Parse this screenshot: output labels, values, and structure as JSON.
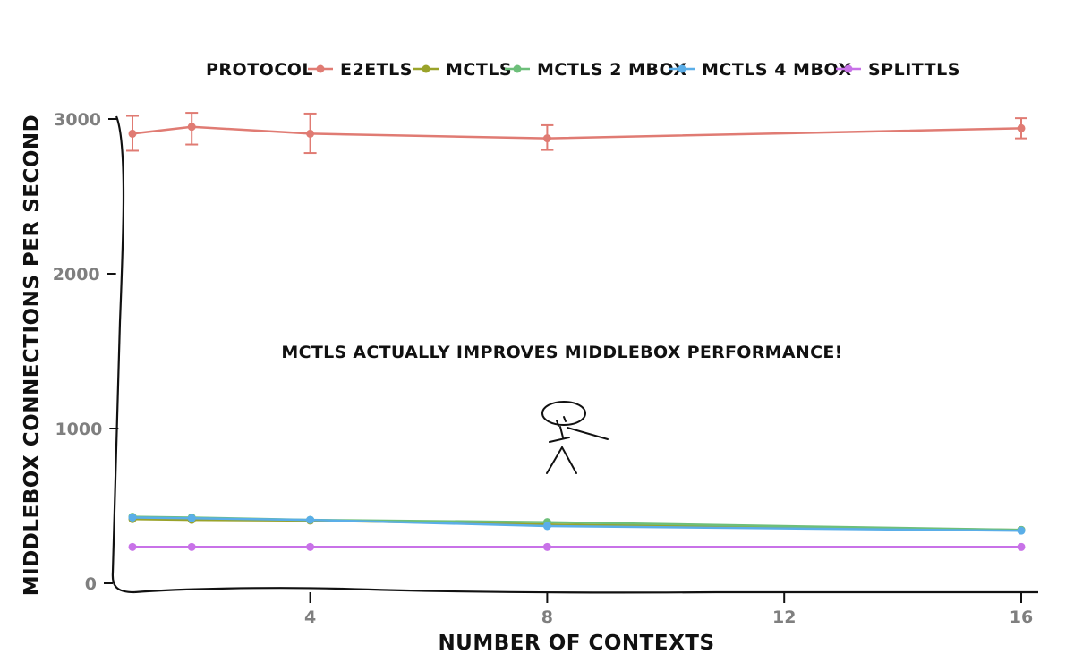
{
  "chart_data": {
    "type": "line",
    "xlabel": "NUMBER OF CONTEXTS",
    "ylabel": "MIDDLEBOX CONNECTIONS PER SECOND",
    "xlim": [
      1,
      16
    ],
    "ylim": [
      0,
      3000
    ],
    "x_ticks": [
      4,
      8,
      12,
      16
    ],
    "y_ticks": [
      0,
      1000,
      2000,
      3000
    ],
    "legend": {
      "title": "PROTOCOL",
      "position": "top"
    },
    "annotation": "MCTLS ACTUALLY IMPROVES MIDDLEBOX PERFORMANCE!",
    "x": [
      1,
      2,
      4,
      8,
      16
    ],
    "series": [
      {
        "name": "E2ETLS",
        "color": "#e07b73",
        "values": [
          2905,
          2950,
          2905,
          2875,
          2940
        ],
        "err_low": [
          2795,
          2835,
          2780,
          2800,
          2875
        ],
        "err_high": [
          3020,
          3040,
          3035,
          2960,
          3005
        ]
      },
      {
        "name": "MCTLS",
        "color": "#9aa32a",
        "values": [
          415,
          410,
          405,
          380,
          345
        ]
      },
      {
        "name": "MCTLS 2 MBOX",
        "color": "#6dbf7a",
        "values": [
          430,
          425,
          410,
          395,
          345
        ]
      },
      {
        "name": "MCTLS 4 MBOX",
        "color": "#5aaee8",
        "values": [
          425,
          420,
          410,
          370,
          340
        ]
      },
      {
        "name": "SPLITTLS",
        "color": "#c872e8",
        "values": [
          235,
          235,
          235,
          235,
          235
        ]
      }
    ]
  }
}
